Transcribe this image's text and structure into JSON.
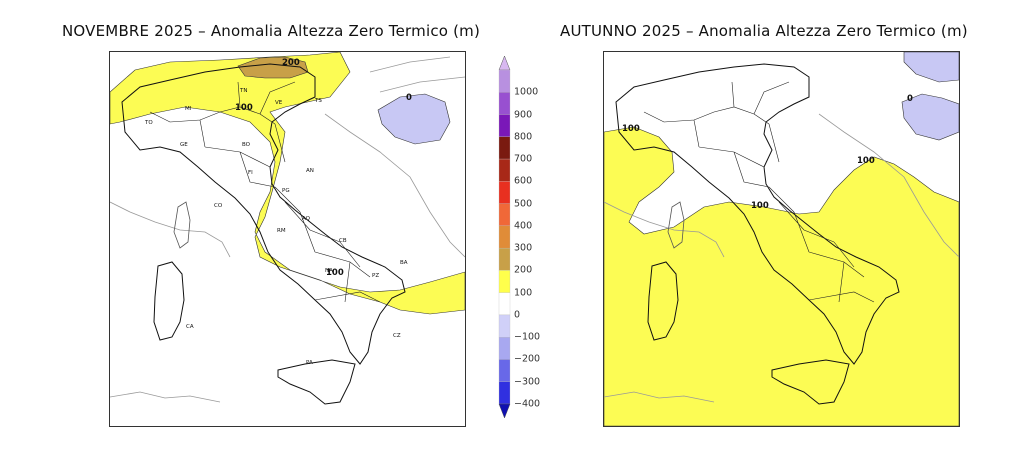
{
  "maps": {
    "left": {
      "title": "NOVEMBRE 2025 – Anomalia Altezza Zero Termico (m)",
      "contour_labels": [
        "200",
        "100",
        "0",
        "100"
      ]
    },
    "right": {
      "title": "AUTUNNO 2025 – Anomalia Altezza Zero Termico (m)",
      "contour_labels": [
        "100",
        "0",
        "100",
        "100"
      ]
    }
  },
  "city_labels": [
    "MI",
    "TO",
    "GE",
    "BO",
    "FI",
    "TN",
    "VE",
    "TS",
    "AN",
    "PG",
    "AQ",
    "RM",
    "CB",
    "NA",
    "PZ",
    "BA",
    "CZ",
    "PA",
    "CA",
    "CO"
  ],
  "colorbar": {
    "levels": [
      "1000",
      "900",
      "800",
      "700",
      "600",
      "500",
      "400",
      "300",
      "200",
      "100",
      "0",
      "−100",
      "−200",
      "−300",
      "−400"
    ],
    "colors": [
      "#d8b8f0",
      "#b890e0",
      "#9850d0",
      "#7a18b8",
      "#7a1a10",
      "#a82818",
      "#e83020",
      "#f06838",
      "#e08c38",
      "#c8a048",
      "#ffff4c",
      "#ffffff",
      "#d0d0f8",
      "#a8a8f0",
      "#6868e8",
      "#3030e0",
      "#1010b0"
    ]
  },
  "colors": {
    "pos_100_200": "#fcfc54",
    "pos_200_300": "#c8a048",
    "neg_0_100": "#c8c8f4",
    "border": "#111111",
    "coast_foreign": "#888888"
  }
}
